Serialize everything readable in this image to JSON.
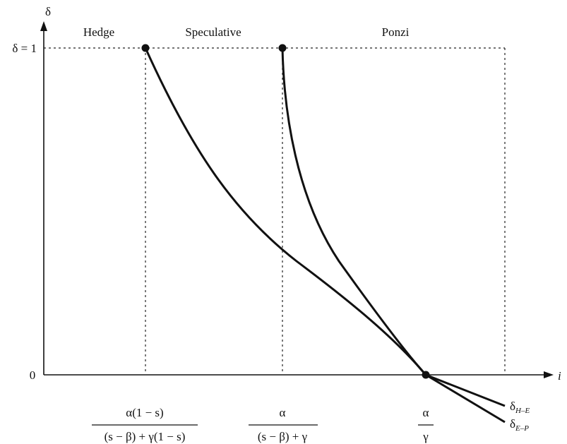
{
  "axes": {
    "y_label": "δ",
    "x_label": "i",
    "y_top_label": "δ = 1",
    "origin_label": "0"
  },
  "regions": [
    "Hedge",
    "Speculative",
    "Ponzi"
  ],
  "x_labels": [
    {
      "numerator": "α(1 − s)",
      "denominator": "(s − β) + γ(1 − s)"
    },
    {
      "numerator": "α",
      "denominator": "(s − β) + γ"
    },
    {
      "numerator": "α",
      "denominator": "γ"
    }
  ],
  "curve_labels": [
    {
      "symbol": "δ",
      "subscript": "H–E"
    },
    {
      "symbol": "δ",
      "subscript": "E–P"
    }
  ]
}
